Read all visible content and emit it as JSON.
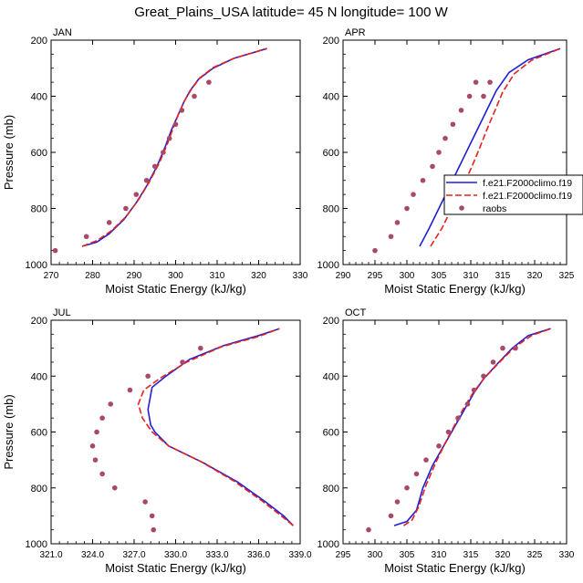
{
  "title": "Great_Plains_USA  latitude= 45 N longitude= 100 W",
  "colors": {
    "model1": "#1f1fd6",
    "model2": "#e8201c",
    "obs": "#a8486a"
  },
  "legend": {
    "entries": [
      {
        "label": "f.e21.F2000climo.f19",
        "style": "solid",
        "color": "#1f1fd6"
      },
      {
        "label": "f.e21.F2000climo.f19",
        "style": "dashed",
        "color": "#e8201c"
      },
      {
        "label": "raobs",
        "style": "dot",
        "color": "#a8486a"
      }
    ]
  },
  "chart_data": [
    {
      "type": "line",
      "panel_label": "JAN",
      "xlabel": "Moist Static Energy (kJ/kg)",
      "ylabel": "Pressure (mb)",
      "xlim": [
        270,
        330
      ],
      "ylim": [
        1000,
        200
      ],
      "xticks": [
        270,
        280,
        290,
        300,
        310,
        320,
        330
      ],
      "xtick_labels": [
        "270",
        "280",
        "290",
        "300",
        "310",
        "320",
        "330"
      ],
      "yticks": [
        200,
        400,
        600,
        800,
        1000
      ],
      "ytick_labels": [
        "200",
        "400",
        "600",
        "800",
        "1000"
      ],
      "series": [
        {
          "style": "solid",
          "color": "#1f1fd6",
          "x": [
            277.5,
            281,
            284,
            287.5,
            290.5,
            293,
            295.5,
            297.5,
            299,
            300.5,
            302,
            303.5,
            305.5,
            309,
            314,
            322
          ],
          "y": [
            935,
            920,
            890,
            840,
            780,
            720,
            650,
            580,
            520,
            470,
            420,
            380,
            340,
            300,
            265,
            230
          ]
        },
        {
          "style": "dashed",
          "color": "#e8201c",
          "x": [
            277.5,
            281,
            284.5,
            288,
            291,
            293.5,
            296,
            298,
            299.5,
            300.8,
            302.2,
            303.8,
            305.8,
            309,
            314,
            322
          ],
          "y": [
            935,
            915,
            880,
            830,
            770,
            710,
            640,
            570,
            510,
            460,
            415,
            375,
            335,
            298,
            265,
            230
          ]
        },
        {
          "style": "dots",
          "color": "#a8486a",
          "x": [
            271,
            278.5,
            284,
            288,
            290.5,
            293,
            295,
            297,
            298.5,
            300,
            301.5,
            304.5,
            308
          ],
          "y": [
            950,
            900,
            850,
            800,
            750,
            700,
            650,
            600,
            550,
            500,
            450,
            400,
            350
          ]
        }
      ]
    },
    {
      "type": "line",
      "panel_label": "APR",
      "xlabel": "Moist Static Energy (kJ/kg)",
      "ylabel": "",
      "xlim": [
        290,
        325
      ],
      "ylim": [
        1000,
        200
      ],
      "xticks": [
        290,
        295,
        300,
        305,
        310,
        315,
        320,
        325
      ],
      "xtick_labels": [
        "290",
        "295",
        "300",
        "305",
        "310",
        "315",
        "320",
        "325"
      ],
      "yticks": [
        200,
        400,
        600,
        800,
        1000
      ],
      "ytick_labels": [
        "200",
        "400",
        "600",
        "800",
        "1000"
      ],
      "series": [
        {
          "style": "solid",
          "color": "#1f1fd6",
          "x": [
            302,
            303.5,
            305,
            306.5,
            308,
            309.5,
            311,
            312.5,
            314,
            316,
            319,
            324
          ],
          "y": [
            935,
            870,
            800,
            730,
            660,
            590,
            520,
            450,
            380,
            315,
            270,
            230
          ]
        },
        {
          "style": "dashed",
          "color": "#e8201c",
          "x": [
            303.7,
            305.5,
            307,
            308.5,
            310,
            311.3,
            312.5,
            313.8,
            315,
            316.8,
            319.5,
            324
          ],
          "y": [
            935,
            870,
            800,
            730,
            660,
            590,
            520,
            450,
            385,
            320,
            272,
            230
          ]
        },
        {
          "style": "dots",
          "color": "#a8486a",
          "x": [
            295,
            297.5,
            298.5,
            300,
            301,
            302.5,
            304,
            305,
            306,
            307.2,
            308.5,
            309.8,
            310.8,
            312,
            313
          ],
          "y": [
            950,
            900,
            850,
            800,
            750,
            700,
            650,
            600,
            550,
            500,
            450,
            400,
            350,
            400,
            350
          ]
        }
      ]
    },
    {
      "type": "line",
      "panel_label": "JUL",
      "xlabel": "Moist Static Energy (kJ/kg)",
      "ylabel": "Pressure (mb)",
      "xlim": [
        321,
        339
      ],
      "ylim": [
        1000,
        200
      ],
      "xticks": [
        321,
        324,
        327,
        330,
        333,
        336,
        339
      ],
      "xtick_labels": [
        "321.0",
        "324.0",
        "327.0",
        "330.0",
        "333.0",
        "336.0",
        "339.0"
      ],
      "yticks": [
        200,
        400,
        600,
        800,
        1000
      ],
      "ytick_labels": [
        "200",
        "400",
        "600",
        "800",
        "1000"
      ],
      "series": [
        {
          "style": "solid",
          "color": "#1f1fd6",
          "x": [
            338.5,
            337.8,
            336.5,
            334.5,
            332,
            329.5,
            328.5,
            328.2,
            328,
            328.3,
            329.3,
            331,
            333.5,
            336,
            337.5
          ],
          "y": [
            935,
            900,
            850,
            780,
            710,
            650,
            600,
            575,
            520,
            440,
            400,
            340,
            290,
            255,
            230
          ]
        },
        {
          "style": "dashed",
          "color": "#e8201c",
          "x": [
            338.5,
            337.5,
            336.2,
            334.2,
            331.8,
            329.5,
            328.3,
            327.6,
            327.3,
            327.7,
            328.8,
            330.8,
            333.3,
            336,
            337.5
          ],
          "y": [
            935,
            895,
            845,
            775,
            705,
            650,
            600,
            550,
            500,
            450,
            410,
            350,
            295,
            258,
            230
          ]
        },
        {
          "style": "dots",
          "color": "#a8486a",
          "x": [
            328.4,
            328.3,
            327.8,
            325.6,
            324.7,
            324.2,
            324.0,
            324.3,
            324.7,
            325.3,
            326.7,
            328.0,
            330.5,
            331.8
          ],
          "y": [
            950,
            900,
            850,
            800,
            750,
            700,
            650,
            600,
            550,
            500,
            450,
            400,
            350,
            300
          ]
        }
      ]
    },
    {
      "type": "line",
      "panel_label": "OCT",
      "xlabel": "Moist Static Energy (kJ/kg)",
      "ylabel": "",
      "xlim": [
        295,
        330
      ],
      "ylim": [
        1000,
        200
      ],
      "xticks": [
        295,
        300,
        305,
        310,
        315,
        320,
        325,
        330
      ],
      "xtick_labels": [
        "295",
        "300",
        "305",
        "310",
        "315",
        "320",
        "325",
        "330"
      ],
      "yticks": [
        200,
        400,
        600,
        800,
        1000
      ],
      "ytick_labels": [
        "200",
        "400",
        "600",
        "800",
        "1000"
      ],
      "series": [
        {
          "style": "solid",
          "color": "#1f1fd6",
          "x": [
            303,
            305,
            306.5,
            307.5,
            309,
            311,
            312.5,
            314,
            315.5,
            317,
            319,
            321.5,
            324,
            327.5
          ],
          "y": [
            935,
            920,
            880,
            800,
            720,
            640,
            580,
            520,
            460,
            410,
            360,
            300,
            255,
            230
          ]
        },
        {
          "style": "dashed",
          "color": "#e8201c",
          "x": [
            304.5,
            305.8,
            306.8,
            308,
            309.5,
            311.2,
            312.6,
            314,
            315.5,
            317.2,
            319.3,
            321.8,
            324.5,
            327.5
          ],
          "y": [
            935,
            915,
            870,
            790,
            710,
            630,
            570,
            510,
            455,
            405,
            355,
            298,
            255,
            230
          ]
        },
        {
          "style": "dots",
          "color": "#a8486a",
          "x": [
            299,
            302.5,
            303.5,
            305,
            306.5,
            308,
            310,
            311.5,
            313,
            314.5,
            315.5,
            317,
            318.5,
            320,
            322
          ],
          "y": [
            950,
            900,
            850,
            800,
            750,
            700,
            650,
            600,
            550,
            500,
            450,
            400,
            350,
            300,
            300
          ]
        }
      ]
    }
  ]
}
